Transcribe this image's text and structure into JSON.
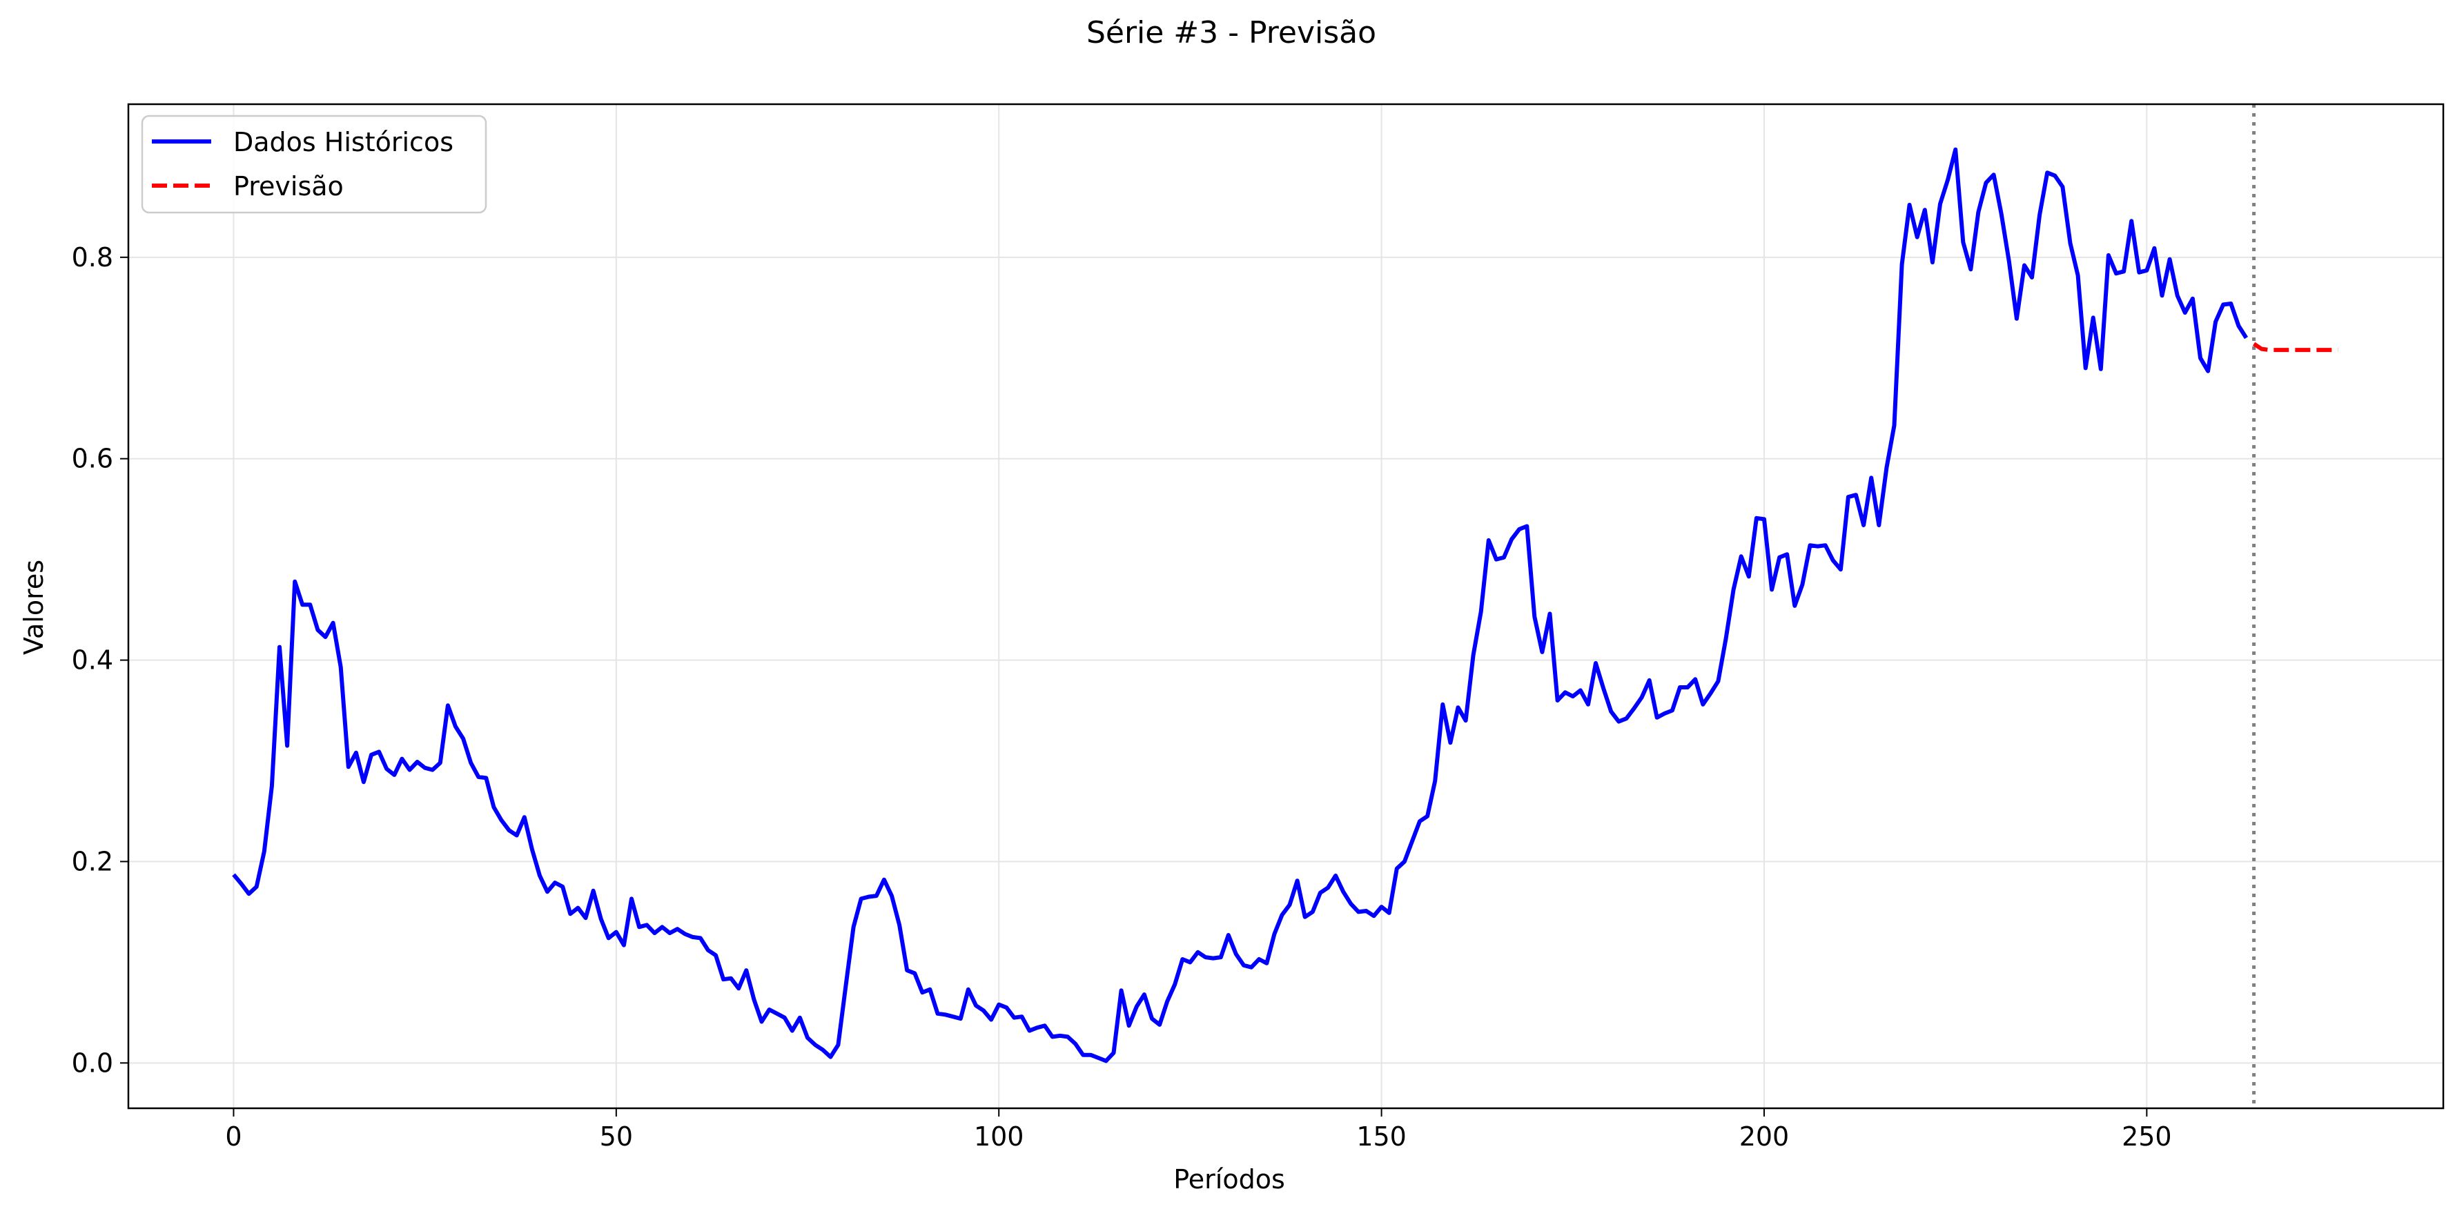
{
  "chart_data": {
    "type": "line",
    "title": "Série #3 - Previsão",
    "xlabel": "Períodos",
    "ylabel": "Valores",
    "xlim": [
      -13.75,
      288.75
    ],
    "ylim": [
      -0.045,
      0.952
    ],
    "x_ticks": [
      0,
      50,
      100,
      150,
      200,
      250
    ],
    "y_ticks": [
      0.0,
      0.2,
      0.4,
      0.6,
      0.8
    ],
    "grid": true,
    "legend_position": "top-left",
    "forecast_start": 264,
    "series": [
      {
        "name": "Dados Históricos",
        "color": "#0000ff",
        "style": "solid",
        "x_start": 0,
        "values": [
          0.187,
          0.178,
          0.168,
          0.175,
          0.21,
          0.275,
          0.413,
          0.315,
          0.478,
          0.455,
          0.455,
          0.43,
          0.423,
          0.437,
          0.393,
          0.294,
          0.308,
          0.279,
          0.306,
          0.309,
          0.292,
          0.286,
          0.302,
          0.291,
          0.299,
          0.293,
          0.291,
          0.298,
          0.355,
          0.334,
          0.322,
          0.298,
          0.284,
          0.283,
          0.254,
          0.241,
          0.231,
          0.226,
          0.244,
          0.212,
          0.186,
          0.17,
          0.179,
          0.175,
          0.148,
          0.154,
          0.144,
          0.171,
          0.143,
          0.124,
          0.13,
          0.117,
          0.163,
          0.135,
          0.137,
          0.129,
          0.135,
          0.129,
          0.133,
          0.128,
          0.125,
          0.124,
          0.112,
          0.107,
          0.083,
          0.084,
          0.074,
          0.092,
          0.063,
          0.041,
          0.053,
          0.049,
          0.045,
          0.032,
          0.045,
          0.025,
          0.018,
          0.013,
          0.006,
          0.018,
          0.077,
          0.135,
          0.163,
          0.165,
          0.166,
          0.182,
          0.166,
          0.137,
          0.092,
          0.089,
          0.07,
          0.073,
          0.049,
          0.048,
          0.046,
          0.044,
          0.073,
          0.057,
          0.052,
          0.043,
          0.058,
          0.055,
          0.045,
          0.046,
          0.032,
          0.035,
          0.037,
          0.026,
          0.027,
          0.026,
          0.019,
          0.008,
          0.008,
          0.005,
          0.002,
          0.01,
          0.072,
          0.037,
          0.056,
          0.068,
          0.044,
          0.038,
          0.061,
          0.078,
          0.103,
          0.1,
          0.11,
          0.105,
          0.104,
          0.105,
          0.127,
          0.108,
          0.097,
          0.095,
          0.103,
          0.099,
          0.128,
          0.147,
          0.157,
          0.181,
          0.145,
          0.15,
          0.169,
          0.174,
          0.186,
          0.17,
          0.158,
          0.15,
          0.151,
          0.146,
          0.155,
          0.149,
          0.193,
          0.2,
          0.22,
          0.24,
          0.245,
          0.28,
          0.356,
          0.318,
          0.353,
          0.34,
          0.405,
          0.448,
          0.519,
          0.5,
          0.502,
          0.52,
          0.53,
          0.533,
          0.443,
          0.408,
          0.446,
          0.36,
          0.368,
          0.364,
          0.37,
          0.356,
          0.397,
          0.372,
          0.349,
          0.339,
          0.342,
          0.352,
          0.363,
          0.38,
          0.343,
          0.347,
          0.35,
          0.373,
          0.373,
          0.381,
          0.356,
          0.367,
          0.379,
          0.421,
          0.47,
          0.503,
          0.483,
          0.541,
          0.54,
          0.47,
          0.502,
          0.505,
          0.454,
          0.475,
          0.514,
          0.513,
          0.514,
          0.499,
          0.49,
          0.562,
          0.564,
          0.534,
          0.581,
          0.534,
          0.591,
          0.633,
          0.793,
          0.852,
          0.82,
          0.847,
          0.795,
          0.853,
          0.877,
          0.907,
          0.815,
          0.788,
          0.845,
          0.874,
          0.882,
          0.843,
          0.796,
          0.739,
          0.792,
          0.78,
          0.842,
          0.884,
          0.881,
          0.87,
          0.814,
          0.782,
          0.69,
          0.74,
          0.689,
          0.802,
          0.784,
          0.786,
          0.836,
          0.785,
          0.787,
          0.809,
          0.762,
          0.798,
          0.762,
          0.745,
          0.759,
          0.7,
          0.687,
          0.736,
          0.753,
          0.754,
          0.732,
          0.72
        ]
      },
      {
        "name": "Previsão",
        "color": "#ff0000",
        "style": "dashed",
        "x_start": 264,
        "values": [
          0.714,
          0.709,
          0.708,
          0.708,
          0.708,
          0.708,
          0.708,
          0.708,
          0.708,
          0.708,
          0.708,
          0.708
        ]
      }
    ]
  },
  "colors": {
    "grid": "#e5e5e5",
    "axis": "#000000",
    "forecast_marker": "#808080"
  }
}
